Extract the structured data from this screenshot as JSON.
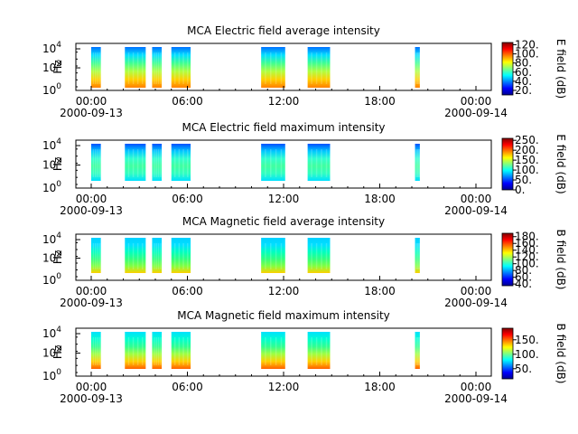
{
  "chart_data": [
    {
      "type": "heatmap",
      "title": "MCA  Electric field average intensity",
      "ylabel": "Hz",
      "yscale": "log",
      "ytick_labels": [
        {
          "base": "10",
          "exp": "0"
        },
        {
          "base": "10",
          "exp": "2"
        },
        {
          "base": "10",
          "exp": "4"
        }
      ],
      "xtick_labels": [
        "00:00",
        "06:00",
        "12:00",
        "18:00",
        "00:00"
      ],
      "date_labels": [
        "2000-09-13",
        "2000-09-14"
      ],
      "colorbar_label": "E field (dB)",
      "colorbar_ticks": [
        "20.",
        "40.",
        "60.",
        "80.",
        "100.",
        "120."
      ],
      "colorbar_range": [
        10,
        125
      ],
      "data_intervals_hours": [
        [
          0.0,
          0.6
        ],
        [
          2.1,
          3.4
        ],
        [
          3.8,
          4.4
        ],
        [
          5.0,
          6.2
        ],
        [
          10.6,
          12.1
        ],
        [
          13.5,
          14.9
        ],
        [
          20.2,
          20.5
        ]
      ]
    },
    {
      "type": "heatmap",
      "title": "MCA  Electric field maximum intensity",
      "ylabel": "Hz",
      "yscale": "log",
      "ytick_labels": [
        {
          "base": "10",
          "exp": "0"
        },
        {
          "base": "10",
          "exp": "2"
        },
        {
          "base": "10",
          "exp": "4"
        }
      ],
      "xtick_labels": [
        "00:00",
        "06:00",
        "12:00",
        "18:00",
        "00:00"
      ],
      "date_labels": [
        "2000-09-13",
        "2000-09-14"
      ],
      "colorbar_label": "E field (dB)",
      "colorbar_ticks": [
        "0.",
        "50.",
        "100.",
        "150.",
        "200.",
        "250."
      ],
      "colorbar_range": [
        0,
        260
      ],
      "data_intervals_hours": [
        [
          0.0,
          0.6
        ],
        [
          2.1,
          3.4
        ],
        [
          3.8,
          4.4
        ],
        [
          5.0,
          6.2
        ],
        [
          10.6,
          12.1
        ],
        [
          13.5,
          14.9
        ],
        [
          20.2,
          20.5
        ]
      ]
    },
    {
      "type": "heatmap",
      "title": "MCA  Magnetic field average intensity",
      "ylabel": "Hz",
      "yscale": "log",
      "ytick_labels": [
        {
          "base": "10",
          "exp": "0"
        },
        {
          "base": "10",
          "exp": "2"
        },
        {
          "base": "10",
          "exp": "4"
        }
      ],
      "xtick_labels": [
        "00:00",
        "06:00",
        "12:00",
        "18:00",
        "00:00"
      ],
      "date_labels": [
        "2000-09-13",
        "2000-09-14"
      ],
      "colorbar_label": "B field (dB)",
      "colorbar_ticks": [
        "40.",
        "60.",
        "80.",
        "100.",
        "120.",
        "140.",
        "160.",
        "180."
      ],
      "colorbar_range": [
        35,
        190
      ],
      "data_intervals_hours": [
        [
          0.0,
          0.6
        ],
        [
          2.1,
          3.4
        ],
        [
          3.8,
          4.4
        ],
        [
          5.0,
          6.2
        ],
        [
          10.6,
          12.1
        ],
        [
          13.5,
          14.9
        ],
        [
          20.2,
          20.5
        ]
      ]
    },
    {
      "type": "heatmap",
      "title": "MCA  Magnetic field maximum intensity",
      "ylabel": "Hz",
      "yscale": "log",
      "ytick_labels": [
        {
          "base": "10",
          "exp": "0"
        },
        {
          "base": "10",
          "exp": "2"
        },
        {
          "base": "10",
          "exp": "4"
        }
      ],
      "xtick_labels": [
        "00:00",
        "06:00",
        "12:00",
        "18:00",
        "00:00"
      ],
      "date_labels": [
        "2000-09-13",
        "2000-09-14"
      ],
      "colorbar_label": "B field (dB)",
      "colorbar_ticks": [
        "50.",
        "100.",
        "150."
      ],
      "colorbar_range": [
        15,
        190
      ],
      "data_intervals_hours": [
        [
          0.0,
          0.6
        ],
        [
          2.1,
          3.4
        ],
        [
          3.8,
          4.4
        ],
        [
          5.0,
          6.2
        ],
        [
          10.6,
          12.1
        ],
        [
          13.5,
          14.9
        ],
        [
          20.2,
          20.5
        ]
      ]
    }
  ]
}
